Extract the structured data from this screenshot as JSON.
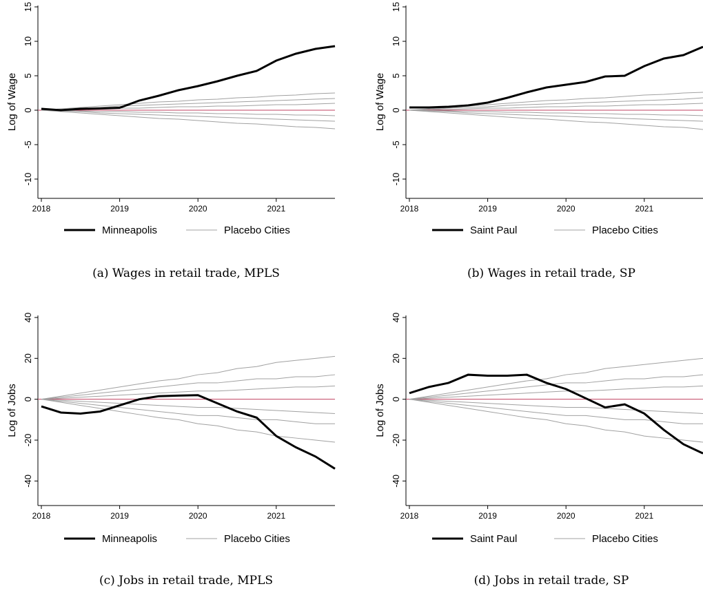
{
  "chart_data": [
    {
      "type": "line",
      "ylabel": "Log of Wage",
      "caption": "(a)  Wages in retail trade, MPLS",
      "x": [
        2018,
        2018.25,
        2018.5,
        2018.75,
        2019,
        2019.25,
        2019.5,
        2019.75,
        2020,
        2020.25,
        2020.5,
        2020.75,
        2021,
        2021.25,
        2021.5,
        2021.75
      ],
      "xlim": [
        2018,
        2021.75
      ],
      "xticks": [
        2018,
        2019,
        2020,
        2021
      ],
      "ylim": [
        -12.8,
        15.2
      ],
      "yticks": [
        -10,
        -5,
        0,
        5,
        10,
        15
      ],
      "series": [
        {
          "name": "Minneapolis",
          "color": "#000000",
          "values": [
            0.2,
            0,
            0.2,
            0.25,
            0.35,
            1.4,
            2.1,
            2.9,
            3.5,
            4.2,
            5.0,
            5.7,
            7.2,
            8.2,
            8.9,
            9.3
          ]
        },
        {
          "name": "Placebo Cities",
          "color": "#a0a0a0",
          "values": [
            0,
            0.2,
            0.4,
            0.6,
            0.8,
            1.0,
            1.2,
            1.3,
            1.5,
            1.6,
            1.8,
            1.9,
            2.1,
            2.2,
            2.4,
            2.5
          ]
        },
        {
          "name": "Placebo Cities",
          "color": "#a0a0a0",
          "values": [
            0,
            -0.2,
            -0.4,
            -0.6,
            -0.8,
            -1.0,
            -1.2,
            -1.3,
            -1.5,
            -1.7,
            -1.9,
            -2.0,
            -2.2,
            -2.4,
            -2.5,
            -2.7
          ]
        },
        {
          "name": "Placebo Cities",
          "color": "#a0a0a0",
          "values": [
            0,
            0.1,
            0.3,
            0.4,
            0.6,
            0.7,
            0.8,
            0.9,
            1.0,
            1.1,
            1.2,
            1.3,
            1.4,
            1.5,
            1.6,
            1.7
          ]
        },
        {
          "name": "Placebo Cities",
          "color": "#a0a0a0",
          "values": [
            0,
            -0.1,
            -0.2,
            -0.4,
            -0.5,
            -0.6,
            -0.7,
            -0.8,
            -0.9,
            -1.0,
            -1.1,
            -1.2,
            -1.3,
            -1.4,
            -1.5,
            -1.6
          ]
        },
        {
          "name": "Placebo Cities",
          "color": "#a0a0a0",
          "values": [
            0,
            0.1,
            0.1,
            0.2,
            0.3,
            0.3,
            0.4,
            0.5,
            0.5,
            0.6,
            0.6,
            0.7,
            0.8,
            0.8,
            0.9,
            1.0
          ]
        },
        {
          "name": "Placebo Cities",
          "color": "#a0a0a0",
          "values": [
            0,
            -0.05,
            -0.1,
            -0.2,
            -0.2,
            -0.3,
            -0.3,
            -0.4,
            -0.4,
            -0.5,
            -0.5,
            -0.6,
            -0.6,
            -0.7,
            -0.7,
            -0.8
          ]
        }
      ]
    },
    {
      "type": "line",
      "ylabel": "Log of Wage",
      "caption": "(b)  Wages in retail trade, SP",
      "x": [
        2018,
        2018.25,
        2018.5,
        2018.75,
        2019,
        2019.25,
        2019.5,
        2019.75,
        2020,
        2020.25,
        2020.5,
        2020.75,
        2021,
        2021.25,
        2021.5,
        2021.75
      ],
      "xlim": [
        2018,
        2021.75
      ],
      "xticks": [
        2018,
        2019,
        2020,
        2021
      ],
      "ylim": [
        -12.8,
        15.2
      ],
      "yticks": [
        -10,
        -5,
        0,
        5,
        10,
        15
      ],
      "series": [
        {
          "name": "Saint Paul",
          "color": "#000000",
          "values": [
            0.4,
            0.4,
            0.5,
            0.7,
            1.1,
            1.8,
            2.6,
            3.3,
            3.7,
            4.1,
            4.9,
            5.0,
            6.4,
            7.5,
            8.0,
            9.2
          ]
        },
        {
          "name": "Placebo Cities",
          "color": "#a0a0a0",
          "values": [
            0,
            0.2,
            0.4,
            0.6,
            0.8,
            1.0,
            1.2,
            1.4,
            1.5,
            1.7,
            1.8,
            2.0,
            2.2,
            2.3,
            2.5,
            2.6
          ]
        },
        {
          "name": "Placebo Cities",
          "color": "#a0a0a0",
          "values": [
            0,
            -0.2,
            -0.4,
            -0.6,
            -0.8,
            -1.0,
            -1.2,
            -1.3,
            -1.5,
            -1.7,
            -1.8,
            -2.0,
            -2.2,
            -2.4,
            -2.5,
            -2.8
          ]
        },
        {
          "name": "Placebo Cities",
          "color": "#a0a0a0",
          "values": [
            0,
            0.1,
            0.3,
            0.4,
            0.5,
            0.7,
            0.8,
            0.9,
            1.0,
            1.1,
            1.2,
            1.3,
            1.4,
            1.5,
            1.6,
            1.8
          ]
        },
        {
          "name": "Placebo Cities",
          "color": "#a0a0a0",
          "values": [
            0,
            -0.1,
            -0.2,
            -0.4,
            -0.5,
            -0.6,
            -0.7,
            -0.8,
            -0.9,
            -1.0,
            -1.1,
            -1.2,
            -1.3,
            -1.4,
            -1.5,
            -1.6
          ]
        },
        {
          "name": "Placebo Cities",
          "color": "#a0a0a0",
          "values": [
            0,
            0.1,
            0.1,
            0.2,
            0.3,
            0.3,
            0.4,
            0.5,
            0.5,
            0.6,
            0.6,
            0.7,
            0.8,
            0.8,
            0.9,
            1.0
          ]
        },
        {
          "name": "Placebo Cities",
          "color": "#a0a0a0",
          "values": [
            0,
            -0.05,
            -0.1,
            -0.2,
            -0.2,
            -0.3,
            -0.3,
            -0.4,
            -0.4,
            -0.5,
            -0.5,
            -0.6,
            -0.6,
            -0.7,
            -0.7,
            -0.8
          ]
        }
      ]
    },
    {
      "type": "line",
      "ylabel": "Log of Jobs",
      "caption": "(c)  Jobs in retail trade, MPLS",
      "x": [
        2018,
        2018.25,
        2018.5,
        2018.75,
        2019,
        2019.25,
        2019.5,
        2019.75,
        2020,
        2020.25,
        2020.5,
        2020.75,
        2021,
        2021.25,
        2021.5,
        2021.75
      ],
      "xlim": [
        2018,
        2021.75
      ],
      "xticks": [
        2018,
        2019,
        2020,
        2021
      ],
      "ylim": [
        -52,
        41
      ],
      "yticks": [
        -40,
        -20,
        0,
        20,
        40
      ],
      "series": [
        {
          "name": "Minneapolis",
          "color": "#000000",
          "values": [
            -3.5,
            -6.5,
            -7,
            -6,
            -3,
            0,
            1.5,
            1.8,
            2,
            -2,
            -6,
            -9,
            -18,
            -23.5,
            -28,
            -34
          ]
        },
        {
          "name": "Placebo Cities",
          "color": "#a0a0a0",
          "values": [
            0,
            1.5,
            3,
            4.5,
            6,
            7.5,
            9,
            10,
            12,
            13,
            15,
            16,
            18,
            19,
            20,
            21
          ]
        },
        {
          "name": "Placebo Cities",
          "color": "#a0a0a0",
          "values": [
            0,
            -1.5,
            -3,
            -4.5,
            -6,
            -7.5,
            -9,
            -10,
            -12,
            -13,
            -15,
            -16,
            -18,
            -19,
            -20,
            -21
          ]
        },
        {
          "name": "Placebo Cities",
          "color": "#a0a0a0",
          "values": [
            0,
            1,
            2,
            3,
            4,
            5,
            6,
            7,
            8,
            8,
            9,
            10,
            10,
            11,
            11,
            12
          ]
        },
        {
          "name": "Placebo Cities",
          "color": "#a0a0a0",
          "values": [
            0,
            -1,
            -2,
            -3,
            -4,
            -5,
            -6,
            -7,
            -8,
            -8,
            -9,
            -10,
            -10,
            -11,
            -12,
            -12
          ]
        },
        {
          "name": "Placebo Cities",
          "color": "#a0a0a0",
          "values": [
            0,
            0.5,
            1,
            1.5,
            2,
            2.5,
            3,
            3.5,
            4,
            4,
            4.5,
            5,
            5.5,
            6,
            6,
            6.5
          ]
        },
        {
          "name": "Placebo Cities",
          "color": "#a0a0a0",
          "values": [
            0,
            -0.5,
            -1,
            -1.5,
            -2,
            -2.5,
            -3,
            -3.5,
            -4,
            -4,
            -4.5,
            -5,
            -5.5,
            -6,
            -6.5,
            -7
          ]
        }
      ]
    },
    {
      "type": "line",
      "ylabel": "Log of Jobs",
      "caption": "(d)  Jobs in retail trade, SP",
      "x": [
        2018,
        2018.25,
        2018.5,
        2018.75,
        2019,
        2019.25,
        2019.5,
        2019.75,
        2020,
        2020.25,
        2020.5,
        2020.75,
        2021,
        2021.25,
        2021.5,
        2021.75
      ],
      "xlim": [
        2018,
        2021.75
      ],
      "xticks": [
        2018,
        2019,
        2020,
        2021
      ],
      "ylim": [
        -52,
        41
      ],
      "yticks": [
        -40,
        -20,
        0,
        20,
        40
      ],
      "series": [
        {
          "name": "Saint Paul",
          "color": "#000000",
          "values": [
            3,
            6,
            8,
            12,
            11.5,
            11.5,
            12,
            8,
            5,
            0.5,
            -4,
            -2.5,
            -7,
            -15,
            -22,
            -26.5
          ]
        },
        {
          "name": "Placebo Cities",
          "color": "#a0a0a0",
          "values": [
            0,
            1.5,
            3,
            4.5,
            6,
            7.5,
            9,
            10,
            12,
            13,
            15,
            16,
            17,
            18,
            19,
            20
          ]
        },
        {
          "name": "Placebo Cities",
          "color": "#a0a0a0",
          "values": [
            0,
            -1.5,
            -3,
            -4.5,
            -6,
            -7.5,
            -9,
            -10,
            -12,
            -13,
            -15,
            -16,
            -18,
            -19,
            -20,
            -21
          ]
        },
        {
          "name": "Placebo Cities",
          "color": "#a0a0a0",
          "values": [
            0,
            1,
            2,
            3,
            4,
            5,
            6,
            7,
            8,
            8,
            9,
            10,
            10,
            11,
            11,
            12
          ]
        },
        {
          "name": "Placebo Cities",
          "color": "#a0a0a0",
          "values": [
            0,
            -1,
            -2,
            -3,
            -4,
            -5,
            -6,
            -7,
            -8,
            -8,
            -9,
            -10,
            -10,
            -11,
            -12,
            -12
          ]
        },
        {
          "name": "Placebo Cities",
          "color": "#a0a0a0",
          "values": [
            0,
            0.5,
            1,
            1.5,
            2,
            2.5,
            3,
            3.5,
            4,
            4,
            4.5,
            5,
            5.5,
            6,
            6,
            6.5
          ]
        },
        {
          "name": "Placebo Cities",
          "color": "#a0a0a0",
          "values": [
            0,
            -0.5,
            -1,
            -1.5,
            -2,
            -2.5,
            -3,
            -3.5,
            -4,
            -4,
            -4.5,
            -5,
            -5.5,
            -6,
            -6.5,
            -7
          ]
        }
      ]
    }
  ]
}
